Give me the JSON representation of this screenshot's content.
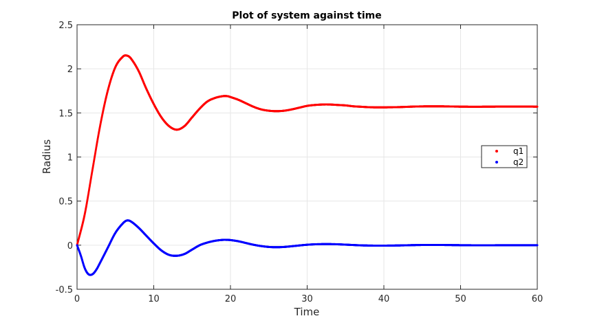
{
  "chart_data": {
    "type": "scatter",
    "title": "Plot of system against time",
    "xlabel": "Time",
    "ylabel": "Radius",
    "xlim": [
      0,
      60
    ],
    "ylim": [
      -0.5,
      2.5
    ],
    "xticks": [
      0,
      10,
      20,
      30,
      40,
      50,
      60
    ],
    "yticks": [
      -0.5,
      0,
      0.5,
      1,
      1.5,
      2,
      2.5
    ],
    "xtick_labels": [
      "0",
      "10",
      "20",
      "30",
      "40",
      "50",
      "60"
    ],
    "ytick_labels": [
      "-0.5",
      "0",
      "0.5",
      "1",
      "1.5",
      "2",
      "2.5"
    ],
    "grid": true,
    "legend_position": "right",
    "series": [
      {
        "name": "q1",
        "color": "#ff0000",
        "x": [
          0,
          1,
          2,
          3,
          4,
          5,
          6,
          6.5,
          7,
          8,
          9,
          10,
          11,
          12,
          13,
          14,
          15,
          16,
          17,
          18,
          19,
          19.6,
          20,
          21,
          22,
          23,
          24,
          25,
          26,
          27,
          28,
          29,
          30,
          31,
          32,
          33,
          34,
          35,
          36,
          37,
          38,
          39,
          40,
          42,
          44,
          46,
          48,
          50,
          52,
          54,
          56,
          58,
          60
        ],
        "y": [
          0,
          0.35,
          0.85,
          1.35,
          1.75,
          2.02,
          2.14,
          2.15,
          2.12,
          1.98,
          1.78,
          1.6,
          1.45,
          1.35,
          1.31,
          1.35,
          1.45,
          1.55,
          1.63,
          1.67,
          1.69,
          1.69,
          1.68,
          1.65,
          1.61,
          1.57,
          1.54,
          1.525,
          1.52,
          1.525,
          1.54,
          1.56,
          1.58,
          1.59,
          1.595,
          1.595,
          1.59,
          1.585,
          1.575,
          1.57,
          1.565,
          1.563,
          1.563,
          1.566,
          1.572,
          1.575,
          1.574,
          1.571,
          1.57,
          1.571,
          1.572,
          1.572,
          1.571
        ]
      },
      {
        "name": "q2",
        "color": "#0000ff",
        "x": [
          0,
          0.5,
          1,
          1.5,
          2,
          2.5,
          3,
          4,
          5,
          6,
          6.5,
          7,
          8,
          9,
          10,
          11,
          12,
          13,
          14,
          15,
          16,
          17,
          18,
          19,
          19.6,
          20,
          21,
          22,
          23,
          24,
          25,
          26,
          27,
          28,
          29,
          30,
          31,
          32,
          33,
          34,
          35,
          36,
          37,
          38,
          39,
          40,
          42,
          44,
          46,
          48,
          50,
          52,
          54,
          56,
          58,
          60
        ],
        "y": [
          0,
          -0.12,
          -0.26,
          -0.33,
          -0.33,
          -0.28,
          -0.2,
          -0.03,
          0.14,
          0.25,
          0.28,
          0.27,
          0.2,
          0.11,
          0.02,
          -0.06,
          -0.11,
          -0.12,
          -0.1,
          -0.05,
          0.0,
          0.03,
          0.05,
          0.06,
          0.06,
          0.058,
          0.045,
          0.025,
          0.005,
          -0.01,
          -0.02,
          -0.023,
          -0.02,
          -0.012,
          -0.003,
          0.005,
          0.01,
          0.012,
          0.012,
          0.01,
          0.006,
          0.002,
          -0.002,
          -0.004,
          -0.005,
          -0.005,
          -0.003,
          0.001,
          0.003,
          0.002,
          0.0,
          -0.001,
          -0.001,
          0.0,
          0.0,
          0.0
        ]
      }
    ]
  }
}
